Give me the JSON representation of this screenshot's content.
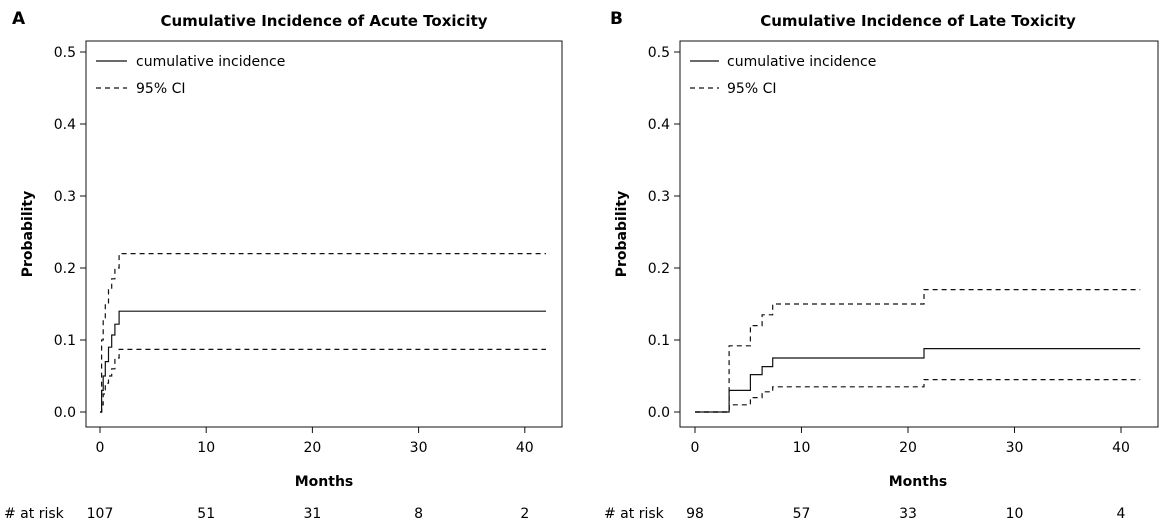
{
  "chart_data": [
    {
      "type": "line",
      "panel_label": "A",
      "title": "Cumulative Incidence of Acute Toxicity",
      "xlabel": "Months",
      "ylabel": "Probability",
      "xlim": [
        0,
        42
      ],
      "ylim": [
        0,
        0.5
      ],
      "xticks": [
        0,
        10,
        20,
        30,
        40
      ],
      "yticks": [
        0.0,
        0.1,
        0.2,
        0.3,
        0.4,
        0.5
      ],
      "ytick_labels": [
        "0.0",
        "0.1",
        "0.2",
        "0.3",
        "0.4",
        "0.5"
      ],
      "legend_position": "top-left",
      "grid": false,
      "series": [
        {
          "name": "cumulative incidence",
          "style": "solid",
          "x": [
            0,
            0.15,
            0.3,
            0.5,
            0.8,
            1.1,
            1.4,
            1.8,
            42
          ],
          "y": [
            0.0,
            0.03,
            0.05,
            0.07,
            0.09,
            0.107,
            0.122,
            0.14,
            0.14
          ]
        },
        {
          "name": "95% CI",
          "style": "dashed",
          "x": [
            0,
            0.15,
            0.3,
            0.5,
            0.8,
            1.1,
            1.4,
            1.8,
            42
          ],
          "y": [
            0.0,
            0.1,
            0.13,
            0.15,
            0.17,
            0.185,
            0.2,
            0.22,
            0.22
          ]
        },
        {
          "name": "95% CI",
          "style": "dashed",
          "x": [
            0,
            0.15,
            0.3,
            0.5,
            0.8,
            1.1,
            1.4,
            1.8,
            42
          ],
          "y": [
            0.0,
            0.01,
            0.025,
            0.04,
            0.05,
            0.06,
            0.075,
            0.087,
            0.087
          ]
        }
      ],
      "at_risk": {
        "label": "# at risk",
        "x": [
          0,
          10,
          20,
          30,
          40
        ],
        "values": [
          "107",
          "51",
          "31",
          "8",
          "2"
        ]
      }
    },
    {
      "type": "line",
      "panel_label": "B",
      "title": "Cumulative Incidence of Late Toxicity",
      "xlabel": "Months",
      "ylabel": "Probability",
      "xlim": [
        0,
        42
      ],
      "ylim": [
        0,
        0.5
      ],
      "xticks": [
        0,
        10,
        20,
        30,
        40
      ],
      "yticks": [
        0.0,
        0.1,
        0.2,
        0.3,
        0.4,
        0.5
      ],
      "ytick_labels": [
        "0.0",
        "0.1",
        "0.2",
        "0.3",
        "0.4",
        "0.5"
      ],
      "legend_position": "top-left",
      "grid": false,
      "series": [
        {
          "name": "cumulative incidence",
          "style": "solid",
          "x": [
            0,
            3.2,
            5.2,
            6.3,
            7.3,
            21.5,
            41.8
          ],
          "y": [
            0.0,
            0.03,
            0.052,
            0.063,
            0.075,
            0.088,
            0.088
          ]
        },
        {
          "name": "95% CI",
          "style": "dashed",
          "x": [
            0,
            3.2,
            5.2,
            6.3,
            7.3,
            21.5,
            41.8
          ],
          "y": [
            0.0,
            0.092,
            0.12,
            0.135,
            0.15,
            0.17,
            0.17
          ]
        },
        {
          "name": "95% CI",
          "style": "dashed",
          "x": [
            0,
            3.2,
            5.2,
            6.3,
            7.3,
            21.5,
            41.8
          ],
          "y": [
            0.0,
            0.01,
            0.02,
            0.028,
            0.035,
            0.045,
            0.045
          ]
        }
      ],
      "at_risk": {
        "label": "# at risk",
        "x": [
          0,
          10,
          20,
          30,
          40
        ],
        "values": [
          "98",
          "57",
          "33",
          "10",
          "4"
        ]
      }
    }
  ]
}
